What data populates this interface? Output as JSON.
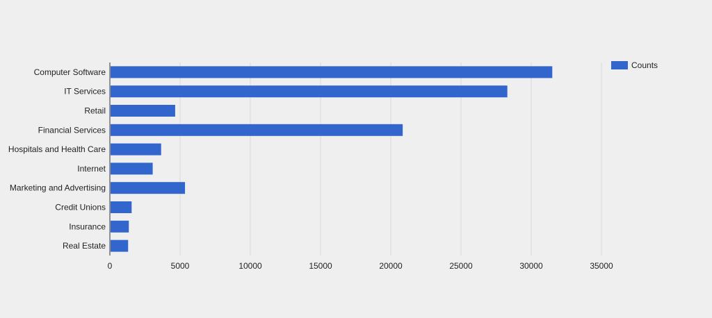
{
  "chart_data": {
    "type": "bar",
    "orientation": "horizontal",
    "categories": [
      "Computer Software",
      "IT Services",
      "Retail",
      "Financial Services",
      "Hospitals and Health Care",
      "Internet",
      "Marketing and Advertising",
      "Credit Unions",
      "Insurance",
      "Real Estate"
    ],
    "series": [
      {
        "name": "Counts",
        "values": [
          31500,
          28300,
          4650,
          20850,
          3650,
          3050,
          5350,
          1550,
          1350,
          1300
        ]
      }
    ],
    "x_ticks": [
      "0",
      "5000",
      "10000",
      "15000",
      "20000",
      "25000",
      "30000",
      "35000"
    ],
    "xlim": [
      0,
      35000
    ],
    "grid": true,
    "legend_position": "top-right",
    "colors": {
      "bar": "#3366cc",
      "grid": "#d8d8d8",
      "axis": "#333333",
      "background": "#efefef"
    }
  }
}
